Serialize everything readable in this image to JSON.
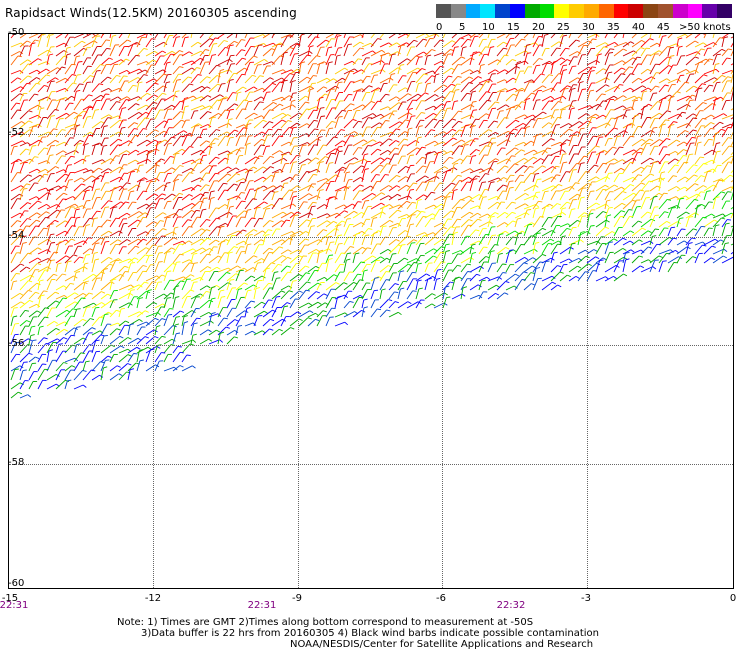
{
  "title": "Rapidsact Winds(12.5KM) 20160305 ascending",
  "legend": {
    "unit_label": ">50 knots",
    "ticks": [
      "0",
      "5",
      "10",
      "15",
      "20",
      "25",
      "30",
      "35",
      "40",
      "45"
    ],
    "colors": [
      "#555555",
      "#888888",
      "#00aaff",
      "#00e5ff",
      "#0044cc",
      "#0000ff",
      "#00aa00",
      "#00dd00",
      "#ffff00",
      "#ffcc00",
      "#ffaa00",
      "#ff6600",
      "#ff0000",
      "#cc0000",
      "#8b4513",
      "#a0522d",
      "#cc00cc",
      "#ff00ff",
      "#6600aa",
      "#330066"
    ]
  },
  "map": {
    "lat_labels": [
      "-50",
      "-52",
      "-54",
      "-56",
      "-58",
      "-60"
    ],
    "lon_labels": [
      "-15",
      "-12",
      "-9",
      "-6",
      "-3",
      "0"
    ],
    "time_labels": [
      "22:31",
      "22:31",
      "22:32"
    ],
    "lat_range": [
      -60,
      -50
    ],
    "lon_range": [
      -15,
      0
    ]
  },
  "notes": [
    "Note: 1) Times are GMT 2)Times along bottom correspond to measurement at -50S",
    "3)Data buffer is 22 hrs from 20160305 4) Black wind barbs indicate possible contamination"
  ],
  "credit": "NOAA/NESDIS/Center for Satellite Applications and Research"
}
